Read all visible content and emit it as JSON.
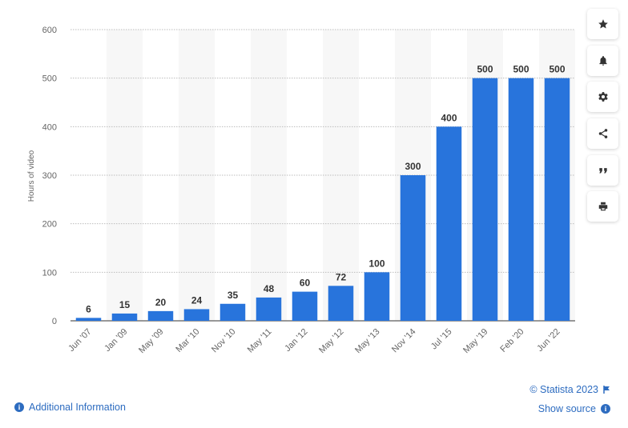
{
  "chart_data": {
    "type": "bar",
    "categories": [
      "Jun '07",
      "Jan '09",
      "May '09",
      "Mar '10",
      "Nov '10",
      "May '11",
      "Jan '12",
      "May '12",
      "May '13",
      "Nov '14",
      "Jul '15",
      "May '19",
      "Feb '20",
      "Jun '22"
    ],
    "values": [
      6,
      15,
      20,
      24,
      35,
      48,
      60,
      72,
      100,
      300,
      400,
      500,
      500,
      500
    ],
    "ylabel": "Hours of video",
    "xlabel": "",
    "ylim": [
      0,
      600
    ],
    "yticks": [
      0,
      100,
      200,
      300,
      400,
      500,
      600
    ],
    "bar_color": "#2874dc",
    "band_color": "#f7f7f7",
    "grid": true,
    "data_labels": true
  },
  "toolbar": {
    "buttons": [
      {
        "name": "favorite-button",
        "icon": "star-icon"
      },
      {
        "name": "notification-button",
        "icon": "bell-icon"
      },
      {
        "name": "settings-button",
        "icon": "gear-icon"
      },
      {
        "name": "share-button",
        "icon": "share-icon"
      },
      {
        "name": "cite-button",
        "icon": "quote-icon"
      },
      {
        "name": "print-button",
        "icon": "printer-icon"
      }
    ]
  },
  "footer": {
    "copyright": "© Statista 2023",
    "additional_info": "Additional Information",
    "show_source": "Show source"
  },
  "colors": {
    "accent": "#2d6cc0",
    "icon": "#333333"
  }
}
